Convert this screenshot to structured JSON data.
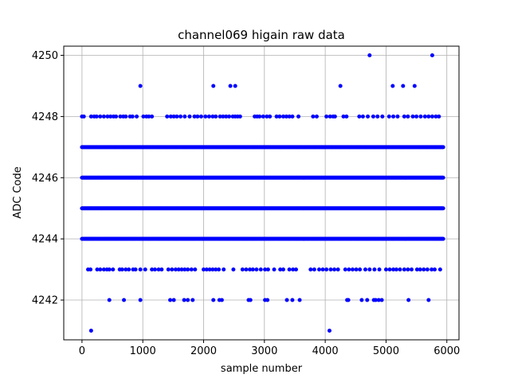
{
  "chart_data": {
    "type": "scatter",
    "title": "channel069 higain raw data",
    "xlabel": "sample number",
    "ylabel": "ADC Code",
    "xlim": [
      -300,
      6200
    ],
    "ylim": [
      4240.7,
      4250.3
    ],
    "xticks": [
      0,
      1000,
      2000,
      3000,
      4000,
      5000,
      6000
    ],
    "yticks": [
      4242,
      4244,
      4246,
      4248,
      4250
    ],
    "grid": true,
    "marker_color": "#0000ff",
    "series": [
      {
        "x_range": [
          0,
          5940
        ],
        "dense_levels": [
          4244,
          4245,
          4246,
          4247
        ],
        "sparse_points": [
          {
            "y": 4250,
            "x": [
              4730,
              5760
            ]
          },
          {
            "y": 4249,
            "x": [
              960,
              2160,
              2440,
              2520,
              4250,
              5110,
              5280,
              5470
            ]
          },
          {
            "y": 4248,
            "x": [
              0,
              30,
              150,
              200,
              240,
              300,
              360,
              420,
              470,
              520,
              560,
              630,
              680,
              720,
              790,
              830,
              900,
              1010,
              1060,
              1100,
              1150,
              1400,
              1460,
              1510,
              1560,
              1620,
              1690,
              1770,
              1850,
              1900,
              1960,
              2030,
              2090,
              2150,
              2200,
              2270,
              2320,
              2370,
              2420,
              2480,
              2520,
              2560,
              2600,
              2840,
              2880,
              2920,
              2980,
              3040,
              3090,
              3200,
              3250,
              3310,
              3360,
              3410,
              3460,
              3560,
              3800,
              3860,
              4020,
              4080,
              4130,
              4160,
              4300,
              4350,
              4560,
              4620,
              4700,
              4790,
              4860,
              4940,
              5050,
              5120,
              5190,
              5300,
              5360,
              5440,
              5500,
              5570,
              5640,
              5700,
              5760,
              5820,
              5870
            ]
          },
          {
            "y": 4243,
            "x": [
              100,
              140,
              250,
              300,
              360,
              410,
              450,
              510,
              620,
              660,
              720,
              770,
              840,
              880,
              960,
              1040,
              1150,
              1200,
              1260,
              1310,
              1420,
              1480,
              1540,
              1590,
              1640,
              1690,
              1740,
              1800,
              1860,
              2000,
              2050,
              2100,
              2150,
              2200,
              2250,
              2330,
              2490,
              2640,
              2700,
              2760,
              2810,
              2870,
              2940,
              3010,
              3060,
              3160,
              3260,
              3310,
              3410,
              3470,
              3520,
              3760,
              3820,
              3900,
              3960,
              4020,
              4090,
              4150,
              4210,
              4330,
              4390,
              4450,
              4510,
              4570,
              4660,
              4730,
              4810,
              4890,
              5000,
              5060,
              5120,
              5170,
              5230,
              5300,
              5360,
              5420,
              5510,
              5560,
              5620,
              5680,
              5750,
              5800,
              5890
            ]
          },
          {
            "y": 4242,
            "x": [
              450,
              690,
              960,
              1450,
              1510,
              1680,
              1740,
              1820,
              2160,
              2260,
              2300,
              2740,
              2770,
              3010,
              3050,
              3370,
              3460,
              3580,
              4360,
              4380,
              4600,
              4690,
              4800,
              4830,
              4880,
              4930,
              5370,
              5700
            ]
          },
          {
            "y": 4241,
            "x": [
              150,
              4070
            ]
          }
        ]
      }
    ]
  }
}
